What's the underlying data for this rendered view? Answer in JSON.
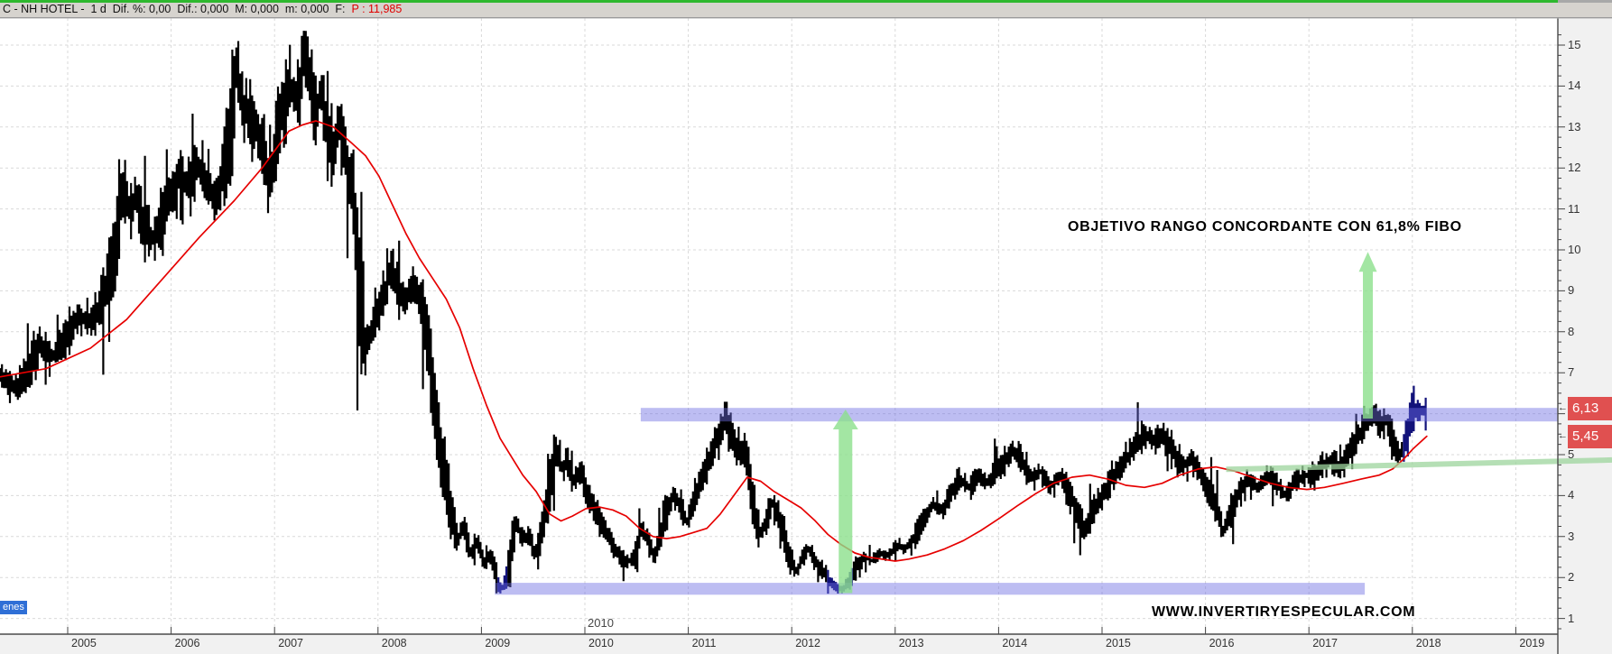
{
  "titlebar": {
    "text_black": "C - NH HOTEL -  1 d  Dif. %: 0,00  Dif.: 0,000  M: 0,000  m: 0,000  F:  ",
    "text_red": "P : 11,985"
  },
  "annotations": {
    "objective": "OBJETIVO RANGO CONCORDANTE CON 61,8% FIBO",
    "website": "WWW.INVERTIRYESPECULAR.COM",
    "floating_year": "2010",
    "series_tag": "enes"
  },
  "axis": {
    "years": [
      "2005",
      "2006",
      "2007",
      "2008",
      "2009",
      "2010",
      "2011",
      "2012",
      "2013",
      "2014",
      "2015",
      "2016",
      "2017",
      "2018",
      "2019"
    ],
    "price_ticks": [
      15,
      14,
      13,
      12,
      11,
      10,
      9,
      8,
      7,
      6,
      5,
      4,
      3,
      2,
      1
    ],
    "price_tags": [
      {
        "label": "6,13",
        "price": 6.13
      },
      {
        "label": "5,45",
        "price": 5.45
      }
    ]
  },
  "colors": {
    "grid": "#d9d9d9",
    "bars": "#000000",
    "bars_recent": "#12127a",
    "ma": "#e60000",
    "band": "#6c6ce2",
    "arrow": "#8ce08c",
    "trendline": "#9cd49c",
    "axis_bg": "#f1f1f1",
    "axis_line": "#4a4a4a",
    "tag_red": "#e05050",
    "tag_blue": "#2f6fd6",
    "titlebar_green": "#2eb82e"
  },
  "chart_data": {
    "type": "line",
    "style": "daily-ohlc-candles-approximated",
    "symbol": "NH HOTEL",
    "timeframe": "1 d",
    "last_price": 6.13,
    "ma_last_value": 5.45,
    "xlim": [
      2004.35,
      2019.4
    ],
    "ylim": [
      0.55,
      15.7
    ],
    "grid": "dashed",
    "price_series": [
      [
        2004.35,
        6.9
      ],
      [
        2004.52,
        6.6
      ],
      [
        2004.74,
        7.7
      ],
      [
        2004.87,
        7.4
      ],
      [
        2005,
        7.9
      ],
      [
        2005.13,
        8.4
      ],
      [
        2005.26,
        8.2
      ],
      [
        2005.39,
        9
      ],
      [
        2005.48,
        10.3
      ],
      [
        2005.54,
        11.7
      ],
      [
        2005.61,
        10.9
      ],
      [
        2005.67,
        11.3
      ],
      [
        2005.74,
        10.6
      ],
      [
        2005.83,
        10.2
      ],
      [
        2005.92,
        10.9
      ],
      [
        2006,
        11.3
      ],
      [
        2006.09,
        11.9
      ],
      [
        2006.18,
        11.6
      ],
      [
        2006.25,
        12.1
      ],
      [
        2006.34,
        11.7
      ],
      [
        2006.44,
        11.3
      ],
      [
        2006.53,
        12
      ],
      [
        2006.6,
        13.2
      ],
      [
        2006.64,
        14.6
      ],
      [
        2006.7,
        13.5
      ],
      [
        2006.77,
        13.3
      ],
      [
        2006.83,
        13
      ],
      [
        2006.89,
        12.6
      ],
      [
        2006.96,
        11.6
      ],
      [
        2007.03,
        12.5
      ],
      [
        2007.09,
        13.6
      ],
      [
        2007.16,
        14
      ],
      [
        2007.23,
        13.8
      ],
      [
        2007.3,
        14.8
      ],
      [
        2007.36,
        14.1
      ],
      [
        2007.42,
        13.5
      ],
      [
        2007.47,
        13.8
      ],
      [
        2007.53,
        12.9
      ],
      [
        2007.59,
        12.4
      ],
      [
        2007.64,
        13.2
      ],
      [
        2007.71,
        12
      ],
      [
        2007.77,
        11.4
      ],
      [
        2007.82,
        9.6
      ],
      [
        2007.87,
        7.6
      ],
      [
        2007.94,
        7.9
      ],
      [
        2008.01,
        8.6
      ],
      [
        2008.08,
        8.9
      ],
      [
        2008.14,
        9.7
      ],
      [
        2008.21,
        9
      ],
      [
        2008.27,
        8.8
      ],
      [
        2008.36,
        9.2
      ],
      [
        2008.45,
        8.3
      ],
      [
        2008.52,
        7.2
      ],
      [
        2008.58,
        5.8
      ],
      [
        2008.64,
        4.8
      ],
      [
        2008.71,
        3.6
      ],
      [
        2008.78,
        2.9
      ],
      [
        2008.84,
        3.3
      ],
      [
        2008.9,
        2.6
      ],
      [
        2008.97,
        2.9
      ],
      [
        2009.04,
        2.3
      ],
      [
        2009.1,
        2.6
      ],
      [
        2009.16,
        1.9
      ],
      [
        2009.21,
        1.7
      ],
      [
        2009.28,
        2.2
      ],
      [
        2009.34,
        3.4
      ],
      [
        2009.41,
        2.9
      ],
      [
        2009.48,
        3.1
      ],
      [
        2009.52,
        2.5
      ],
      [
        2009.58,
        3
      ],
      [
        2009.65,
        3.8
      ],
      [
        2009.73,
        5.2
      ],
      [
        2009.79,
        4.6
      ],
      [
        2009.84,
        4.9
      ],
      [
        2009.9,
        4.3
      ],
      [
        2009.95,
        4.6
      ],
      [
        2010,
        4.3
      ],
      [
        2010.06,
        3.9
      ],
      [
        2010.12,
        3.6
      ],
      [
        2010.19,
        3.2
      ],
      [
        2010.26,
        2.9
      ],
      [
        2010.33,
        2.6
      ],
      [
        2010.41,
        2.35
      ],
      [
        2010.48,
        2.5
      ],
      [
        2010.56,
        3.2
      ],
      [
        2010.62,
        2.9
      ],
      [
        2010.68,
        2.5
      ],
      [
        2010.74,
        3
      ],
      [
        2010.8,
        3.6
      ],
      [
        2010.87,
        4.05
      ],
      [
        2010.93,
        3.8
      ],
      [
        2011,
        3.3
      ],
      [
        2011.06,
        3.8
      ],
      [
        2011.13,
        4.3
      ],
      [
        2011.2,
        4.8
      ],
      [
        2011.27,
        5.3
      ],
      [
        2011.33,
        5.5
      ],
      [
        2011.37,
        6
      ],
      [
        2011.43,
        5.5
      ],
      [
        2011.48,
        5
      ],
      [
        2011.53,
        5.2
      ],
      [
        2011.59,
        4.6
      ],
      [
        2011.65,
        3.6
      ],
      [
        2011.7,
        3.1
      ],
      [
        2011.76,
        3.3
      ],
      [
        2011.82,
        3.9
      ],
      [
        2011.88,
        3.5
      ],
      [
        2011.94,
        2.9
      ],
      [
        2012,
        2.4
      ],
      [
        2012.06,
        2.1
      ],
      [
        2012.11,
        2.5
      ],
      [
        2012.17,
        2.7
      ],
      [
        2012.23,
        2.4
      ],
      [
        2012.3,
        2.2
      ],
      [
        2012.37,
        1.95
      ],
      [
        2012.44,
        1.75
      ],
      [
        2012.51,
        1.7
      ],
      [
        2012.58,
        2
      ],
      [
        2012.65,
        2.3
      ],
      [
        2012.72,
        2.5
      ],
      [
        2012.79,
        2.4
      ],
      [
        2012.86,
        2.6
      ],
      [
        2012.94,
        2.5
      ],
      [
        2013.03,
        2.8
      ],
      [
        2013.11,
        2.7
      ],
      [
        2013.2,
        3
      ],
      [
        2013.29,
        3.4
      ],
      [
        2013.38,
        3.8
      ],
      [
        2013.46,
        3.6
      ],
      [
        2013.55,
        4.1
      ],
      [
        2013.64,
        4.4
      ],
      [
        2013.73,
        4.2
      ],
      [
        2013.81,
        4.5
      ],
      [
        2013.9,
        4.3
      ],
      [
        2013.99,
        4.6
      ],
      [
        2014.08,
        4.9
      ],
      [
        2014.16,
        5.1
      ],
      [
        2014.25,
        4.8
      ],
      [
        2014.34,
        4.4
      ],
      [
        2014.42,
        4.6
      ],
      [
        2014.51,
        4.2
      ],
      [
        2014.6,
        4.5
      ],
      [
        2014.69,
        4.1
      ],
      [
        2014.77,
        3.6
      ],
      [
        2014.83,
        3.1
      ],
      [
        2014.9,
        3.5
      ],
      [
        2014.99,
        3.9
      ],
      [
        2015.08,
        4.3
      ],
      [
        2015.17,
        4.6
      ],
      [
        2015.25,
        4.9
      ],
      [
        2015.34,
        5.2
      ],
      [
        2015.43,
        5.5
      ],
      [
        2015.52,
        5.3
      ],
      [
        2015.6,
        5.5
      ],
      [
        2015.69,
        5.1
      ],
      [
        2015.78,
        4.7
      ],
      [
        2015.87,
        4.9
      ],
      [
        2015.95,
        4.6
      ],
      [
        2016.04,
        4.2
      ],
      [
        2016.13,
        3.6
      ],
      [
        2016.18,
        3.1
      ],
      [
        2016.26,
        3.7
      ],
      [
        2016.35,
        4.1
      ],
      [
        2016.43,
        4.4
      ],
      [
        2016.52,
        4.2
      ],
      [
        2016.61,
        4.5
      ],
      [
        2016.7,
        4.3
      ],
      [
        2016.78,
        4
      ],
      [
        2016.87,
        4.3
      ],
      [
        2016.96,
        4.5
      ],
      [
        2017.05,
        4.4
      ],
      [
        2017.13,
        4.7
      ],
      [
        2017.22,
        4.9
      ],
      [
        2017.3,
        4.6
      ],
      [
        2017.39,
        5
      ],
      [
        2017.48,
        5.4
      ],
      [
        2017.57,
        5.8
      ],
      [
        2017.63,
        6
      ],
      [
        2017.7,
        5.7
      ],
      [
        2017.76,
        5.9
      ],
      [
        2017.83,
        5.2
      ],
      [
        2017.89,
        4.95
      ],
      [
        2017.94,
        5.3
      ],
      [
        2018,
        5.9
      ],
      [
        2018.05,
        6.1
      ],
      [
        2018.1,
        6.05
      ],
      [
        2018.14,
        6.13
      ]
    ],
    "ma_series": [
      [
        2004.35,
        6.9
      ],
      [
        2004.79,
        7.1
      ],
      [
        2005.22,
        7.6
      ],
      [
        2005.57,
        8.3
      ],
      [
        2005.92,
        9.3
      ],
      [
        2006.27,
        10.3
      ],
      [
        2006.61,
        11.2
      ],
      [
        2006.88,
        12
      ],
      [
        2007.14,
        12.9
      ],
      [
        2007.27,
        13.05
      ],
      [
        2007.4,
        13.15
      ],
      [
        2007.57,
        13
      ],
      [
        2007.75,
        12.6
      ],
      [
        2007.88,
        12.3
      ],
      [
        2008.01,
        11.8
      ],
      [
        2008.14,
        11.1
      ],
      [
        2008.27,
        10.4
      ],
      [
        2008.4,
        9.8
      ],
      [
        2008.53,
        9.3
      ],
      [
        2008.66,
        8.8
      ],
      [
        2008.79,
        8.1
      ],
      [
        2008.92,
        7.1
      ],
      [
        2009.05,
        6.2
      ],
      [
        2009.18,
        5.4
      ],
      [
        2009.29,
        4.95
      ],
      [
        2009.4,
        4.5
      ],
      [
        2009.53,
        4.1
      ],
      [
        2009.66,
        3.55
      ],
      [
        2009.77,
        3.38
      ],
      [
        2009.88,
        3.5
      ],
      [
        2010.01,
        3.68
      ],
      [
        2010.14,
        3.72
      ],
      [
        2010.27,
        3.65
      ],
      [
        2010.4,
        3.5
      ],
      [
        2010.53,
        3.2
      ],
      [
        2010.66,
        3
      ],
      [
        2010.79,
        2.95
      ],
      [
        2010.92,
        3
      ],
      [
        2011.05,
        3.1
      ],
      [
        2011.18,
        3.2
      ],
      [
        2011.31,
        3.55
      ],
      [
        2011.44,
        4
      ],
      [
        2011.57,
        4.45
      ],
      [
        2011.7,
        4.35
      ],
      [
        2011.83,
        4.1
      ],
      [
        2011.96,
        3.9
      ],
      [
        2012.09,
        3.7
      ],
      [
        2012.22,
        3.4
      ],
      [
        2012.35,
        3.05
      ],
      [
        2012.48,
        2.8
      ],
      [
        2012.61,
        2.6
      ],
      [
        2012.74,
        2.5
      ],
      [
        2012.87,
        2.45
      ],
      [
        2013,
        2.4
      ],
      [
        2013.13,
        2.45
      ],
      [
        2013.31,
        2.55
      ],
      [
        2013.48,
        2.7
      ],
      [
        2013.66,
        2.9
      ],
      [
        2013.83,
        3.15
      ],
      [
        2014.01,
        3.45
      ],
      [
        2014.18,
        3.75
      ],
      [
        2014.36,
        4.05
      ],
      [
        2014.53,
        4.3
      ],
      [
        2014.71,
        4.45
      ],
      [
        2014.88,
        4.5
      ],
      [
        2015.06,
        4.4
      ],
      [
        2015.23,
        4.25
      ],
      [
        2015.41,
        4.2
      ],
      [
        2015.58,
        4.3
      ],
      [
        2015.75,
        4.5
      ],
      [
        2015.93,
        4.65
      ],
      [
        2016.1,
        4.7
      ],
      [
        2016.28,
        4.6
      ],
      [
        2016.45,
        4.45
      ],
      [
        2016.63,
        4.3
      ],
      [
        2016.8,
        4.2
      ],
      [
        2016.98,
        4.15
      ],
      [
        2017.15,
        4.2
      ],
      [
        2017.33,
        4.3
      ],
      [
        2017.5,
        4.4
      ],
      [
        2017.68,
        4.5
      ],
      [
        2017.81,
        4.65
      ],
      [
        2017.92,
        4.9
      ],
      [
        2018.01,
        5.15
      ],
      [
        2018.14,
        5.45
      ]
    ],
    "bands": [
      {
        "name": "resistance-zone",
        "price_from": 5.81,
        "price_to": 6.14,
        "year_from": 2010.54,
        "year_to": 2019.41
      },
      {
        "name": "support-zone",
        "price_from": 1.58,
        "price_to": 1.87,
        "year_from": 2009.13,
        "year_to": 2017.54
      }
    ],
    "arrows": [
      {
        "name": "range-projection-2012",
        "x_year": 2012.52,
        "price_from": 1.62,
        "price_to": 6.1,
        "shaft_w": 15,
        "head_w": 28,
        "head_h": 22
      },
      {
        "name": "range-projection-2017",
        "x_year": 2017.57,
        "price_from": 5.88,
        "price_to": 9.95,
        "shaft_w": 11,
        "head_w": 20,
        "head_h": 22
      }
    ],
    "trendline": {
      "year_from": 2016.2,
      "price_from": 4.64,
      "year_to": 2019.93,
      "price_to": 4.87
    }
  }
}
